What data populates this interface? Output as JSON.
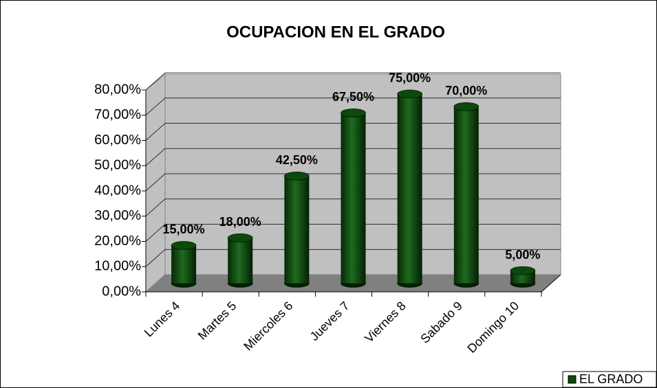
{
  "chart_data": {
    "type": "bar",
    "title": "OCUPACION EN EL GRADO",
    "categories": [
      "Lunes 4",
      "Martes 5",
      "Miercoles 6",
      "Jueves 7",
      "Viernes 8",
      "Sabado 9",
      "Domingo 10"
    ],
    "series": [
      {
        "name": "EL GRADO",
        "color": "#0b4a0b",
        "values": [
          15,
          18,
          42.5,
          67.5,
          75,
          70,
          5
        ],
        "value_labels": [
          "15,00%",
          "18,00%",
          "42,50%",
          "67,50%",
          "75,00%",
          "70,00%",
          "5,00%"
        ]
      }
    ],
    "ylim": [
      0,
      80
    ],
    "yticks": [
      {
        "value": 0,
        "label": "0,00%"
      },
      {
        "value": 10,
        "label": "10,00%"
      },
      {
        "value": 20,
        "label": "20,00%"
      },
      {
        "value": 30,
        "label": "30,00%"
      },
      {
        "value": 40,
        "label": "40,00%"
      },
      {
        "value": 50,
        "label": "50,00%"
      },
      {
        "value": 60,
        "label": "60,00%"
      },
      {
        "value": 70,
        "label": "70,00%"
      },
      {
        "value": 80,
        "label": "80,00%"
      }
    ],
    "grid": true
  }
}
